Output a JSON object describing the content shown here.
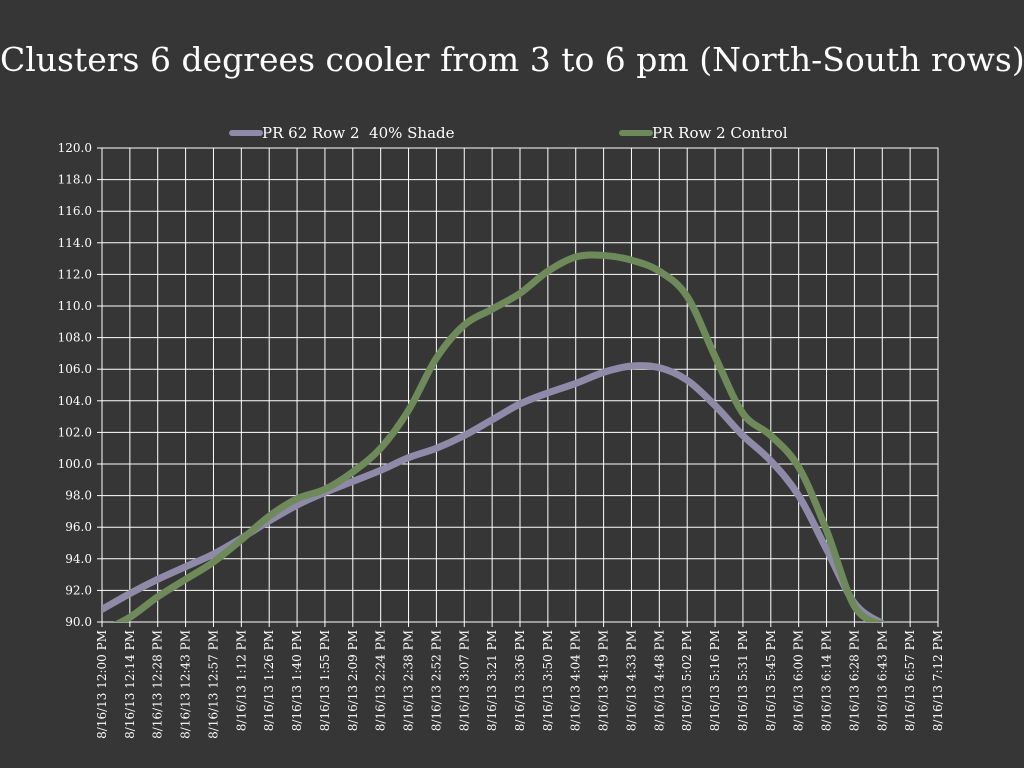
{
  "slide": {
    "title": "Clusters 6 degrees cooler from 3 to 6 pm (North-South rows)"
  },
  "chart_data": {
    "type": "line",
    "title": "",
    "xlabel": "",
    "ylabel": "",
    "ylim": [
      90,
      120
    ],
    "y_ticks": [
      "120.0",
      "118.0",
      "116.0",
      "114.0",
      "112.0",
      "110.0",
      "108.0",
      "106.0",
      "104.0",
      "102.0",
      "100.0",
      "98.0",
      "96.0",
      "94.0",
      "92.0",
      "90.0"
    ],
    "grid": true,
    "legend_position": "top",
    "x": [
      "8/16/13 12:00 PM",
      "8/16/13 12:14 PM",
      "8/16/13 12:28 PM",
      "8/16/13 12:43 PM",
      "8/16/13 12:57 PM",
      "8/16/13 1:12 PM",
      "8/16/13 1:26 PM",
      "8/16/13 1:40 PM",
      "8/16/13 1:55 PM",
      "8/16/13 2:09 PM",
      "8/16/13 2:24 PM",
      "8/16/13 2:38 PM",
      "8/16/13 2:52 PM",
      "8/16/13 3:07 PM",
      "8/16/13 3:21 PM",
      "8/16/13 3:36 PM",
      "8/16/13 3:50 PM",
      "8/16/13 4:04 PM",
      "8/16/13 4:19 PM",
      "8/16/13 4:33 PM",
      "8/16/13 4:48 PM",
      "8/16/13 5:02 PM",
      "8/16/13 5:16 PM",
      "8/16/13 5:31 PM",
      "8/16/13 5:45 PM",
      "8/16/13 6:00 PM",
      "8/16/13 6:14 PM",
      "8/16/13 6:28 PM",
      "8/16/13 6:43 PM",
      "8/16/13 6:57 PM",
      "8/16/13 7:12 PM"
    ],
    "x_tick_labels": [
      "8/16/13 12:00 PM",
      "8/16/13 12:14 PM",
      "8/16/13 12:28 PM",
      "8/16/13 12:43 PM",
      "8/16/13 12:57 PM",
      "8/16/13 1:12 PM",
      "8/16/13 1:26 PM",
      "8/16/13 1:40 PM",
      "8/16/13 1:55 PM",
      "8/16/13 2:09 PM",
      "8/16/13 2:24 PM",
      "8/16/13 2:38 PM",
      "8/16/13 2:52 PM",
      "8/16/13 3:07 PM",
      "8/16/13 3:21 PM",
      "8/16/13 3:36 PM",
      "8/16/13 3:50 PM",
      "8/16/13 4:04 PM",
      "8/16/13 4:19 PM",
      "8/16/13 4:33 PM",
      "8/16/13 4:48 PM",
      "8/16/13 5:02 PM",
      "8/16/13 5:16 PM",
      "8/16/13 5:31 PM",
      "8/16/13 5:45 PM",
      "8/16/13 6:00 PM",
      "8/16/13 6:14 PM",
      "8/16/13 6:28 PM",
      "8/16/13 6:43 PM",
      "8/16/13 6:57 PM",
      "8/16/13 7:12 PM"
    ],
    "series": [
      {
        "name": "PR 62 Row 2  40% Shade",
        "color": "#8e8aa8",
        "values": [
          90.8,
          91.8,
          92.7,
          93.5,
          94.3,
          95.3,
          96.4,
          97.4,
          98.2,
          98.9,
          99.6,
          100.4,
          101.0,
          101.8,
          102.8,
          103.8,
          104.5,
          105.1,
          105.8,
          106.2,
          106.1,
          105.3,
          103.7,
          101.8,
          100.2,
          98.0,
          94.6,
          91.2,
          89.9,
          null,
          null
        ]
      },
      {
        "name": "PR Row 2 Control",
        "color": "#6e8a5a",
        "values": [
          89.4,
          90.3,
          91.6,
          92.7,
          93.8,
          95.2,
          96.7,
          97.8,
          98.4,
          99.5,
          101.0,
          103.4,
          106.7,
          108.8,
          109.8,
          110.8,
          112.2,
          113.1,
          113.2,
          112.9,
          112.2,
          110.6,
          106.8,
          103.2,
          101.8,
          99.8,
          95.8,
          91.0,
          89.8,
          null,
          null
        ]
      }
    ]
  }
}
